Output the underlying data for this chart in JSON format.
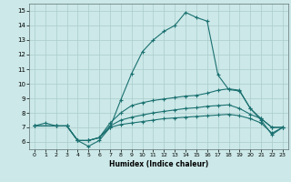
{
  "xlabel": "Humidex (Indice chaleur)",
  "background_color": "#cce8e8",
  "grid_color": "#aacccc",
  "line_color": "#1a7070",
  "xlim": [
    -0.5,
    23.5
  ],
  "ylim": [
    5.5,
    15.5
  ],
  "xticks": [
    0,
    1,
    2,
    3,
    4,
    5,
    6,
    7,
    8,
    9,
    10,
    11,
    12,
    13,
    14,
    15,
    16,
    17,
    18,
    19,
    20,
    21,
    22,
    23
  ],
  "yticks": [
    6,
    7,
    8,
    9,
    10,
    11,
    12,
    13,
    14,
    15
  ],
  "line1_x": [
    0,
    1,
    2,
    3,
    4,
    5,
    6,
    7,
    8,
    9,
    10,
    11,
    12,
    13,
    14,
    15,
    16,
    17,
    18,
    19,
    20,
    21,
    22,
    23
  ],
  "line1_y": [
    7.1,
    7.3,
    7.1,
    7.1,
    6.1,
    5.7,
    6.1,
    7.0,
    8.9,
    10.7,
    12.2,
    13.0,
    13.6,
    14.0,
    14.9,
    14.55,
    14.3,
    10.6,
    9.6,
    9.5,
    8.3,
    7.5,
    6.5,
    7.0
  ],
  "line2_x": [
    0,
    2,
    3,
    4,
    5,
    6,
    7,
    8,
    9,
    10,
    11,
    12,
    13,
    14,
    15,
    16,
    17,
    18,
    19,
    20,
    21,
    22,
    23
  ],
  "line2_y": [
    7.1,
    7.1,
    7.1,
    6.1,
    6.1,
    6.3,
    7.3,
    8.0,
    8.5,
    8.7,
    8.85,
    8.95,
    9.05,
    9.15,
    9.2,
    9.35,
    9.55,
    9.65,
    9.55,
    8.3,
    7.6,
    7.0,
    7.0
  ],
  "line3_x": [
    0,
    2,
    3,
    4,
    5,
    6,
    7,
    8,
    9,
    10,
    11,
    12,
    13,
    14,
    15,
    16,
    17,
    18,
    19,
    20,
    21,
    22,
    23
  ],
  "line3_y": [
    7.1,
    7.1,
    7.1,
    6.1,
    6.1,
    6.3,
    7.1,
    7.5,
    7.7,
    7.85,
    8.0,
    8.1,
    8.2,
    8.3,
    8.35,
    8.45,
    8.5,
    8.55,
    8.3,
    7.9,
    7.6,
    7.0,
    7.0
  ],
  "line4_x": [
    0,
    2,
    3,
    4,
    5,
    6,
    7,
    8,
    9,
    10,
    11,
    12,
    13,
    14,
    15,
    16,
    17,
    18,
    19,
    20,
    21,
    22,
    23
  ],
  "line4_y": [
    7.1,
    7.1,
    7.1,
    6.1,
    6.1,
    6.3,
    7.0,
    7.2,
    7.3,
    7.4,
    7.5,
    7.6,
    7.65,
    7.7,
    7.75,
    7.8,
    7.85,
    7.9,
    7.8,
    7.6,
    7.3,
    6.6,
    7.0
  ]
}
